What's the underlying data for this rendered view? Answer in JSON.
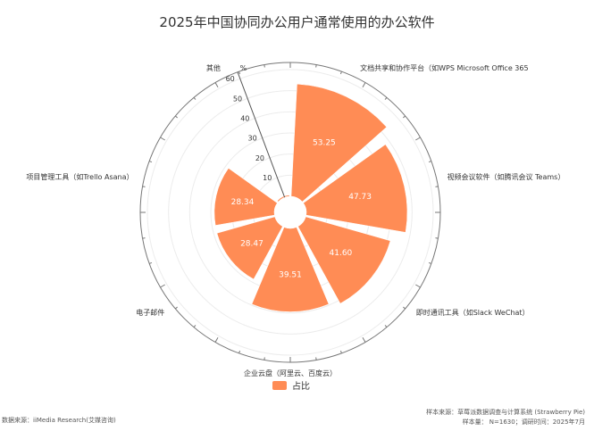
{
  "chart_data": {
    "type": "polar-bar",
    "title": "2025年中国协同办公用户通常使用的办公软件",
    "unit_label": "%",
    "radial_range": [
      0,
      60
    ],
    "radial_ticks": [
      10,
      20,
      30,
      40,
      50,
      60
    ],
    "grid": true,
    "categories": [
      "文档共享和协作平台（如WPS Microsoft Office 365",
      "视频会议软件（如腾讯会议 Teams）",
      "即时通讯工具（如Slack WeChat）",
      "企业云盘（阿里云、百度云）",
      "电子邮件",
      "项目管理工具（如Trello Asana）",
      "其他"
    ],
    "series": [
      {
        "name": "占比",
        "values": [
          53.25,
          47.73,
          41.6,
          39.51,
          28.47,
          28.34,
          0.61
        ],
        "color": "#ff8c55"
      }
    ],
    "legend_position": "bottom"
  },
  "footer": {
    "source_left": "数据来源：iiMedia Research(艾媒咨询)",
    "sample_source": "样本来源：草莓派数据调查与计算系统 (Strawberry Pie)",
    "sample_size": "样本量： N=1630；调研时间：2025年7月"
  }
}
